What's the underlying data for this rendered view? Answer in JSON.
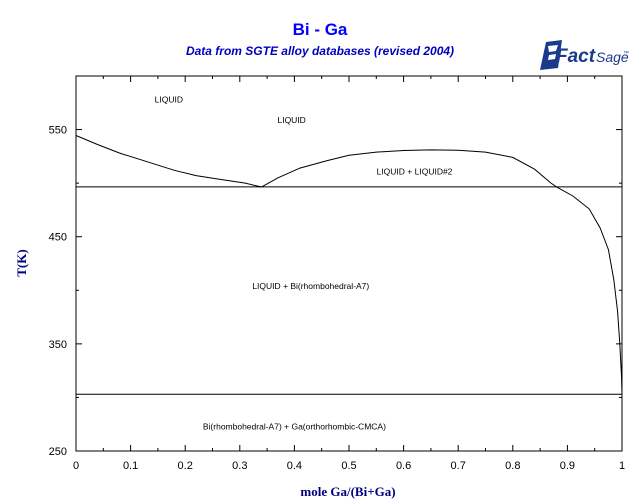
{
  "title": "Bi - Ga",
  "subtitle": "Data from SGTE alloy databases (revised 2004)",
  "logo": {
    "text": "Fact",
    "text2": "Sage",
    "tm": "™",
    "color": "#1a3a8c"
  },
  "chart_data": {
    "type": "line",
    "xlabel": "mole Ga/(Bi+Ga)",
    "ylabel": "T(K)",
    "xlim": [
      0,
      1
    ],
    "ylim": [
      250,
      600
    ],
    "xticks": [
      0,
      0.1,
      0.2,
      0.3,
      0.4,
      0.5,
      0.6,
      0.7,
      0.8,
      0.9,
      1
    ],
    "xtick_labels": [
      "0",
      "0.1",
      "0.2",
      "0.3",
      "0.4",
      "0.5",
      "0.6",
      "0.7",
      "0.8",
      "0.9",
      "1"
    ],
    "yticks": [
      250,
      350,
      450,
      550
    ],
    "ytick_labels": [
      "250",
      "350",
      "450",
      "550"
    ],
    "grid": false,
    "series": [
      {
        "points": [
          [
            0,
            544.5
          ],
          [
            0.04,
            536
          ],
          [
            0.08,
            528
          ],
          [
            0.13,
            520
          ],
          [
            0.18,
            512
          ],
          [
            0.22,
            507
          ],
          [
            0.27,
            503
          ],
          [
            0.31,
            500
          ],
          [
            0.335,
            497
          ],
          [
            0.34,
            496.5
          ]
        ]
      },
      {
        "points": [
          [
            0.34,
            496.5
          ],
          [
            0.37,
            505
          ],
          [
            0.41,
            514
          ],
          [
            0.46,
            521
          ],
          [
            0.5,
            526
          ],
          [
            0.55,
            529
          ],
          [
            0.6,
            530.5
          ],
          [
            0.65,
            531
          ],
          [
            0.7,
            530.7
          ],
          [
            0.75,
            529
          ],
          [
            0.8,
            524
          ],
          [
            0.84,
            513
          ],
          [
            0.87,
            500
          ],
          [
            0.88,
            496.5
          ]
        ]
      },
      {
        "points": [
          [
            0.88,
            496.5
          ],
          [
            0.91,
            488
          ],
          [
            0.94,
            476
          ],
          [
            0.96,
            458
          ],
          [
            0.975,
            438
          ],
          [
            0.985,
            410
          ],
          [
            0.992,
            380
          ],
          [
            0.996,
            350
          ],
          [
            0.999,
            320
          ],
          [
            1.0,
            302.9
          ]
        ]
      },
      {
        "points": [
          [
            0,
            496.5
          ],
          [
            1,
            496.5
          ]
        ]
      },
      {
        "points": [
          [
            0,
            302.9
          ],
          [
            1,
            302.9
          ]
        ]
      }
    ],
    "annotations": [
      {
        "text": "LIQUID",
        "x": 0.17,
        "y": 578
      },
      {
        "text": "LIQUID",
        "x": 0.395,
        "y": 559
      },
      {
        "text": "LIQUID + LIQUID#2",
        "x": 0.62,
        "y": 511
      },
      {
        "text": "LIQUID + Bi(rhombohedral-A7)",
        "x": 0.43,
        "y": 404
      },
      {
        "text": "Bi(rhombohedral-A7) + Ga(orthorhombic-CMCA)",
        "x": 0.4,
        "y": 273
      }
    ],
    "colors": {
      "title": "#0000ff",
      "axis_label": "#000080",
      "curve": "#000000"
    }
  }
}
